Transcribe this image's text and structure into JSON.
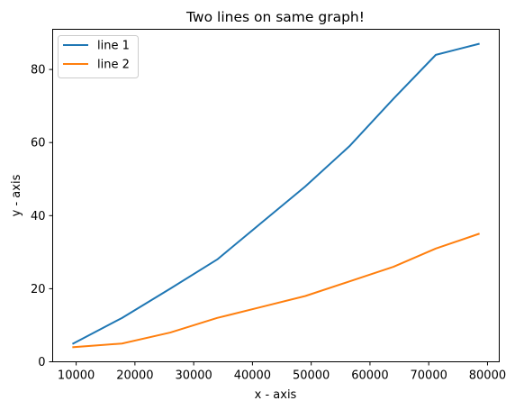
{
  "chart_data": {
    "type": "line",
    "title": "Two lines on same graph!",
    "xlabel": "x - axis",
    "ylabel": "y - axis",
    "xlim": [
      6000,
      82000
    ],
    "ylim": [
      0,
      91
    ],
    "x_ticks": [
      10000,
      20000,
      30000,
      40000,
      50000,
      60000,
      70000,
      80000
    ],
    "y_ticks": [
      0,
      20,
      40,
      60,
      80
    ],
    "grid": false,
    "legend_position": "top-left",
    "series": [
      {
        "name": "line 1",
        "color": "#1f77b4",
        "x": [
          9500,
          17800,
          26000,
          34000,
          41500,
          49000,
          56500,
          64000,
          71200,
          78500
        ],
        "y": [
          5,
          12,
          20,
          28,
          38,
          48,
          59,
          72,
          84,
          87
        ]
      },
      {
        "name": "line 2",
        "color": "#ff7f0e",
        "x": [
          9500,
          17800,
          26000,
          34000,
          41500,
          49000,
          56500,
          64000,
          71200,
          78500
        ],
        "y": [
          4,
          5,
          8,
          12,
          15,
          18,
          22,
          26,
          31,
          35
        ]
      }
    ]
  }
}
